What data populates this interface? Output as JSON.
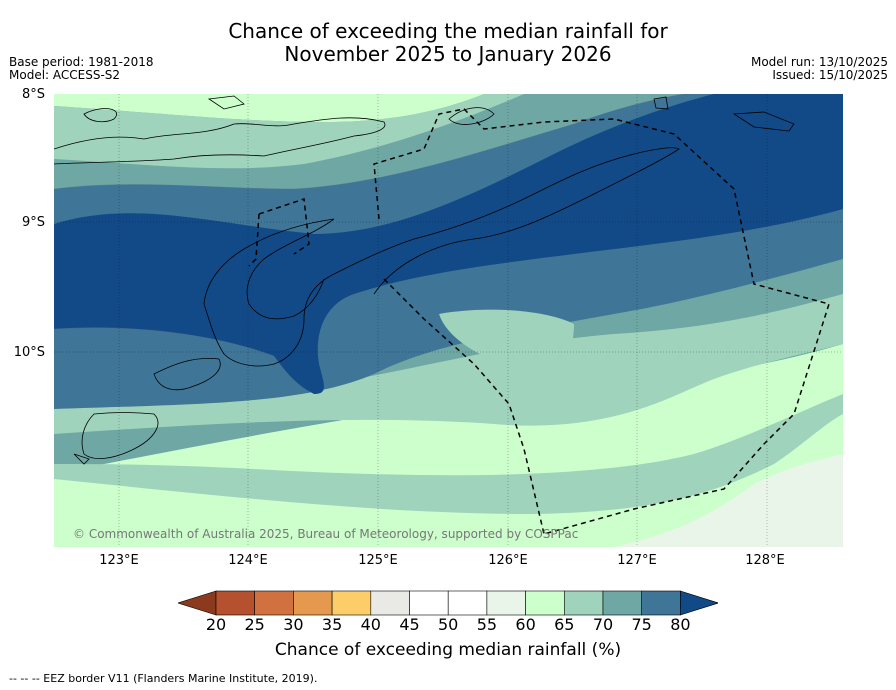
{
  "title_line1": "Chance of exceeding the median rainfall for",
  "title_line2": "November 2025 to January 2026",
  "base_period": "Base period: 1981-2018",
  "model": "Model: ACCESS-S2",
  "model_run": "Model run: 13/10/2025",
  "issued": "Issued: 15/10/2025",
  "lat_labels": [
    "8°S",
    "9°S",
    "10°S"
  ],
  "lon_labels": [
    "123°E",
    "124°E",
    "125°E",
    "126°E",
    "127°E",
    "128°E"
  ],
  "copyright": "© Commonwealth of Australia 2025, Bureau of Meteorology, supported by COSPPac",
  "colorbar": {
    "title": "Chance of exceeding median rainfall (%)",
    "ticks": [
      "20",
      "25",
      "30",
      "35",
      "40",
      "45",
      "50",
      "55",
      "60",
      "65",
      "70",
      "75",
      "80"
    ],
    "colors": [
      "#8b3a1e",
      "#b5512e",
      "#d0713f",
      "#e5994f",
      "#fdcd6a",
      "#e9e9e5",
      "#ffffff",
      "#ffffff",
      "#e8f5e8",
      "#ccffcc",
      "#9fd3bb",
      "#6ea7a4",
      "#3f7597",
      "#124a87"
    ]
  },
  "eez_note": "--  --  -- EEZ border V11 (Flanders Marine Institute, 2019).",
  "legend_colors": {
    "c80": "#124a87",
    "c75": "#3f7597",
    "c70": "#6ea7a4",
    "c65": "#9fd3bb",
    "c60": "#ccffcc",
    "c55": "#e8f5e8"
  }
}
